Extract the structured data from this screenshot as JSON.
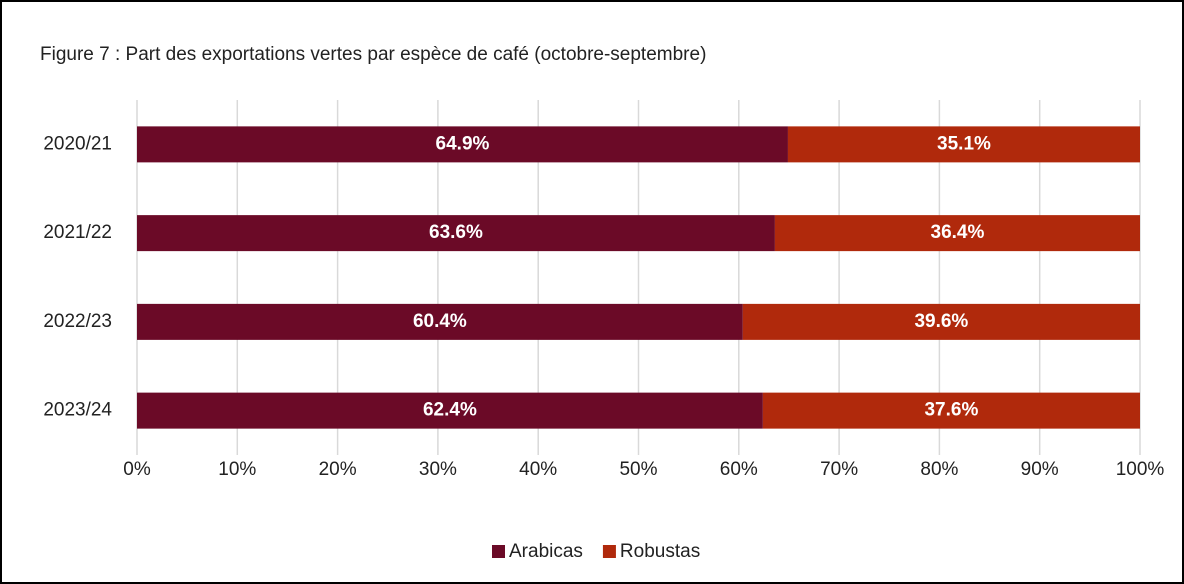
{
  "chart_data": {
    "type": "stacked-barh",
    "title": "Figure 7 : Part des exportations vertes par espèce de café (octobre-septembre)",
    "categories": [
      "2020/21",
      "2021/22",
      "2022/23",
      "2023/24"
    ],
    "series": [
      {
        "name": "Arabicas",
        "color": "#6b0a27",
        "values": [
          64.9,
          63.6,
          60.4,
          62.4
        ],
        "value_labels": [
          "64.9%",
          "63.6%",
          "60.4%",
          "62.4%"
        ]
      },
      {
        "name": "Robustas",
        "color": "#b0290c",
        "values": [
          35.1,
          36.4,
          39.6,
          37.6
        ],
        "value_labels": [
          "35.1%",
          "36.4%",
          "39.6%",
          "37.6%"
        ]
      }
    ],
    "xlim": [
      0,
      100
    ],
    "xticks": [
      {
        "value": 0,
        "label": "0%"
      },
      {
        "value": 10,
        "label": "10%"
      },
      {
        "value": 20,
        "label": "20%"
      },
      {
        "value": 30,
        "label": "30%"
      },
      {
        "value": 40,
        "label": "40%"
      },
      {
        "value": 50,
        "label": "50%"
      },
      {
        "value": 60,
        "label": "60%"
      },
      {
        "value": 70,
        "label": "70%"
      },
      {
        "value": 80,
        "label": "80%"
      },
      {
        "value": 90,
        "label": "90%"
      },
      {
        "value": 100,
        "label": "100%"
      }
    ],
    "grid": true,
    "legend": "bottom"
  }
}
